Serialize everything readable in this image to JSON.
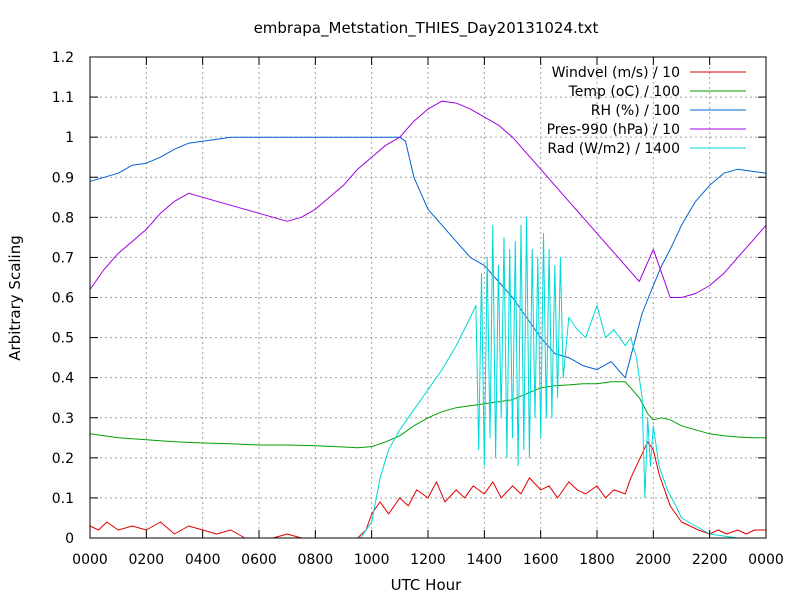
{
  "chart_data": {
    "type": "line",
    "title": "embrapa_Metstation_THIES_Day20131024.txt",
    "xlabel": "UTC Hour",
    "ylabel": "Arbitrary Scaling",
    "xlim": [
      0,
      24
    ],
    "ylim": [
      0,
      1.2
    ],
    "grid": true,
    "legend_position": "top-right",
    "x_ticks": [
      {
        "value": 0,
        "label": "0000"
      },
      {
        "value": 2,
        "label": "0200"
      },
      {
        "value": 4,
        "label": "0400"
      },
      {
        "value": 6,
        "label": "0600"
      },
      {
        "value": 8,
        "label": "0800"
      },
      {
        "value": 10,
        "label": "1000"
      },
      {
        "value": 12,
        "label": "1200"
      },
      {
        "value": 14,
        "label": "1400"
      },
      {
        "value": 16,
        "label": "1600"
      },
      {
        "value": 18,
        "label": "1800"
      },
      {
        "value": 20,
        "label": "2000"
      },
      {
        "value": 22,
        "label": "2200"
      },
      {
        "value": 24,
        "label": "0000"
      }
    ],
    "y_ticks": [
      {
        "value": 0,
        "label": "0"
      },
      {
        "value": 0.1,
        "label": "0.1"
      },
      {
        "value": 0.2,
        "label": "0.2"
      },
      {
        "value": 0.3,
        "label": "0.3"
      },
      {
        "value": 0.4,
        "label": "0.4"
      },
      {
        "value": 0.5,
        "label": "0.5"
      },
      {
        "value": 0.6,
        "label": "0.6"
      },
      {
        "value": 0.7,
        "label": "0.7"
      },
      {
        "value": 0.8,
        "label": "0.8"
      },
      {
        "value": 0.9,
        "label": "0.9"
      },
      {
        "value": 1.0,
        "label": "1"
      },
      {
        "value": 1.1,
        "label": "1.1"
      },
      {
        "value": 1.2,
        "label": "1.2"
      }
    ],
    "series": [
      {
        "name": "Windvel (m/s) / 10",
        "color": "#e00000",
        "x": [
          0,
          0.3,
          0.6,
          1,
          1.5,
          2,
          2.5,
          3,
          3.5,
          4,
          4.5,
          5,
          5.5,
          6,
          6.5,
          7,
          7.5,
          8,
          8.5,
          9,
          9.5,
          9.8,
          10,
          10.3,
          10.6,
          11,
          11.3,
          11.6,
          12,
          12.3,
          12.6,
          13,
          13.3,
          13.6,
          14,
          14.3,
          14.6,
          15,
          15.3,
          15.6,
          16,
          16.3,
          16.6,
          17,
          17.3,
          17.6,
          18,
          18.3,
          18.6,
          19,
          19.2,
          19.4,
          19.6,
          19.8,
          20,
          20.2,
          20.4,
          20.6,
          20.8,
          21,
          21.3,
          21.6,
          22,
          22.3,
          22.6,
          23,
          23.3,
          23.6,
          24
        ],
        "values": [
          0.03,
          0.02,
          0.04,
          0.02,
          0.03,
          0.02,
          0.04,
          0.01,
          0.03,
          0.02,
          0.01,
          0.02,
          0.0,
          0.0,
          0.0,
          0.01,
          0.0,
          0.0,
          0.0,
          0.0,
          0.0,
          0.02,
          0.06,
          0.09,
          0.06,
          0.1,
          0.08,
          0.12,
          0.1,
          0.14,
          0.09,
          0.12,
          0.1,
          0.13,
          0.11,
          0.14,
          0.1,
          0.13,
          0.11,
          0.15,
          0.12,
          0.13,
          0.1,
          0.14,
          0.12,
          0.11,
          0.13,
          0.1,
          0.12,
          0.11,
          0.15,
          0.18,
          0.21,
          0.24,
          0.22,
          0.16,
          0.12,
          0.08,
          0.06,
          0.04,
          0.03,
          0.02,
          0.01,
          0.02,
          0.01,
          0.02,
          0.01,
          0.02,
          0.02
        ]
      },
      {
        "name": "Temp (oC) / 100",
        "color": "#00a000",
        "x": [
          0,
          1,
          2,
          3,
          4,
          5,
          6,
          7,
          8,
          9,
          9.5,
          10,
          10.5,
          11,
          11.5,
          12,
          12.5,
          13,
          13.5,
          14,
          14.5,
          15,
          15.5,
          16,
          16.5,
          17,
          17.5,
          18,
          18.5,
          19,
          19.5,
          19.8,
          20,
          20.3,
          20.6,
          21,
          21.5,
          22,
          22.5,
          23,
          23.5,
          24
        ],
        "values": [
          0.26,
          0.25,
          0.245,
          0.24,
          0.237,
          0.235,
          0.232,
          0.232,
          0.23,
          0.227,
          0.225,
          0.228,
          0.24,
          0.255,
          0.28,
          0.3,
          0.315,
          0.325,
          0.33,
          0.335,
          0.34,
          0.345,
          0.36,
          0.375,
          0.38,
          0.382,
          0.385,
          0.385,
          0.39,
          0.39,
          0.35,
          0.31,
          0.295,
          0.3,
          0.295,
          0.28,
          0.27,
          0.26,
          0.255,
          0.252,
          0.25,
          0.25
        ]
      },
      {
        "name": "RH (%) / 100",
        "color": "#0060d0",
        "x": [
          0,
          0.5,
          1,
          1.5,
          2,
          2.5,
          3,
          3.5,
          4,
          4.5,
          5,
          6,
          7,
          8,
          9,
          10,
          10.5,
          11,
          11.2,
          11.5,
          12,
          12.5,
          13,
          13.5,
          14,
          14.5,
          15,
          15.5,
          16,
          16.5,
          17,
          17.5,
          18,
          18.5,
          19,
          19.3,
          19.6,
          20,
          20.3,
          20.6,
          21,
          21.5,
          22,
          22.5,
          23,
          23.5,
          24
        ],
        "values": [
          0.89,
          0.9,
          0.91,
          0.93,
          0.935,
          0.95,
          0.97,
          0.985,
          0.99,
          0.995,
          1.0,
          1.0,
          1.0,
          1.0,
          1.0,
          1.0,
          1.0,
          1.0,
          0.99,
          0.9,
          0.82,
          0.78,
          0.74,
          0.7,
          0.68,
          0.64,
          0.6,
          0.55,
          0.5,
          0.46,
          0.45,
          0.43,
          0.42,
          0.44,
          0.4,
          0.48,
          0.56,
          0.63,
          0.68,
          0.72,
          0.78,
          0.84,
          0.88,
          0.91,
          0.92,
          0.915,
          0.91
        ]
      },
      {
        "name": "Pres-990 (hPa) / 10",
        "color": "#a000e0",
        "x": [
          0,
          0.5,
          1,
          1.5,
          2,
          2.5,
          3,
          3.5,
          4,
          4.5,
          5,
          5.5,
          6,
          6.5,
          7,
          7.5,
          8,
          8.5,
          9,
          9.5,
          10,
          10.5,
          11,
          11.5,
          12,
          12.5,
          13,
          13.5,
          14,
          14.5,
          15,
          15.5,
          16,
          16.5,
          17,
          17.5,
          18,
          18.5,
          19,
          19.5,
          20,
          20.3,
          20.6,
          21,
          21.5,
          22,
          22.5,
          23,
          23.5,
          24
        ],
        "values": [
          0.62,
          0.67,
          0.71,
          0.74,
          0.77,
          0.81,
          0.84,
          0.86,
          0.85,
          0.84,
          0.83,
          0.82,
          0.81,
          0.8,
          0.79,
          0.8,
          0.82,
          0.85,
          0.88,
          0.92,
          0.95,
          0.98,
          1.0,
          1.04,
          1.07,
          1.09,
          1.085,
          1.07,
          1.05,
          1.03,
          1.0,
          0.96,
          0.92,
          0.88,
          0.84,
          0.8,
          0.76,
          0.72,
          0.68,
          0.64,
          0.72,
          0.66,
          0.6,
          0.6,
          0.61,
          0.63,
          0.66,
          0.7,
          0.74,
          0.78
        ]
      },
      {
        "name": "Rad (W/m2) / 1400",
        "color": "#00d8d8",
        "x": [
          0,
          1,
          2,
          3,
          4,
          5,
          6,
          7,
          8,
          9,
          9.6,
          10,
          10.3,
          10.6,
          11,
          11.5,
          12,
          12.5,
          13,
          13.5,
          13.7,
          13.8,
          13.9,
          14.0,
          14.1,
          14.2,
          14.3,
          14.4,
          14.5,
          14.6,
          14.7,
          14.8,
          14.9,
          15.0,
          15.1,
          15.2,
          15.3,
          15.4,
          15.5,
          15.6,
          15.7,
          15.8,
          15.9,
          16.0,
          16.1,
          16.2,
          16.3,
          16.4,
          16.5,
          16.6,
          16.7,
          16.8,
          17,
          17.3,
          17.6,
          18,
          18.3,
          18.6,
          19,
          19.2,
          19.4,
          19.6,
          19.7,
          19.8,
          19.9,
          20,
          20.2,
          20.5,
          20.8,
          21,
          21.5,
          22,
          23,
          24
        ],
        "values": [
          0,
          0,
          0,
          0,
          0,
          0,
          0,
          0,
          0,
          0,
          0.0,
          0.04,
          0.15,
          0.22,
          0.27,
          0.32,
          0.37,
          0.42,
          0.48,
          0.55,
          0.58,
          0.22,
          0.66,
          0.18,
          0.7,
          0.25,
          0.78,
          0.2,
          0.68,
          0.3,
          0.75,
          0.2,
          0.72,
          0.25,
          0.74,
          0.18,
          0.78,
          0.22,
          0.8,
          0.2,
          0.72,
          0.3,
          0.7,
          0.25,
          0.76,
          0.3,
          0.72,
          0.3,
          0.68,
          0.35,
          0.7,
          0.4,
          0.55,
          0.52,
          0.5,
          0.58,
          0.5,
          0.52,
          0.48,
          0.5,
          0.45,
          0.35,
          0.1,
          0.3,
          0.18,
          0.28,
          0.18,
          0.12,
          0.08,
          0.05,
          0.03,
          0.01,
          0.0,
          0.0
        ]
      }
    ]
  }
}
